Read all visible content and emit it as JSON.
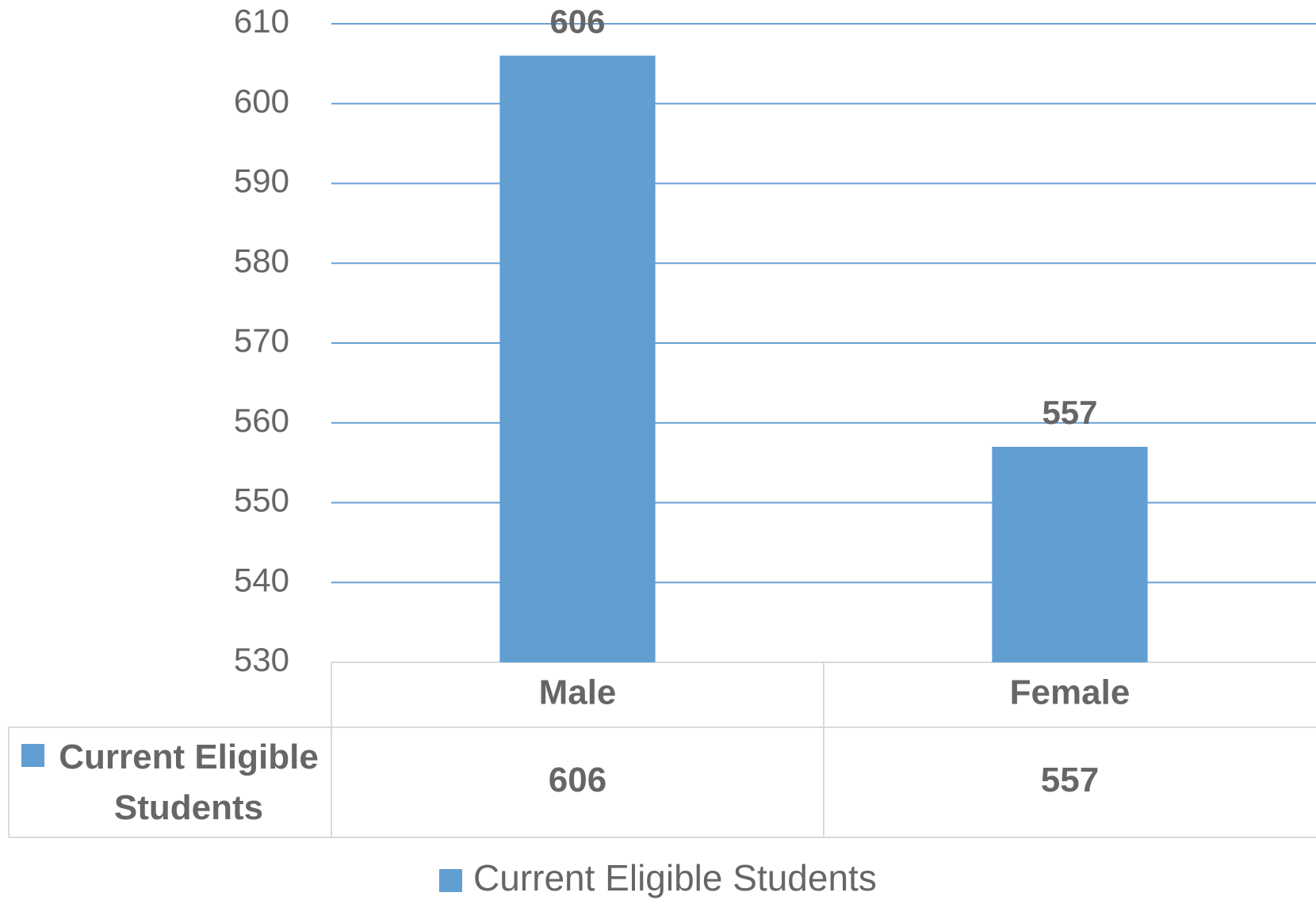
{
  "chart_data": {
    "type": "bar",
    "categories": [
      "Male",
      "Female"
    ],
    "series": [
      {
        "name": "Current Eligible Students",
        "color": "#619ed2",
        "values": [
          606,
          557
        ]
      }
    ],
    "ylim": [
      530,
      610
    ],
    "yticks": [
      530,
      540,
      550,
      560,
      570,
      580,
      590,
      600,
      610
    ],
    "grid": true,
    "legend": "bottom",
    "data_table": true
  }
}
